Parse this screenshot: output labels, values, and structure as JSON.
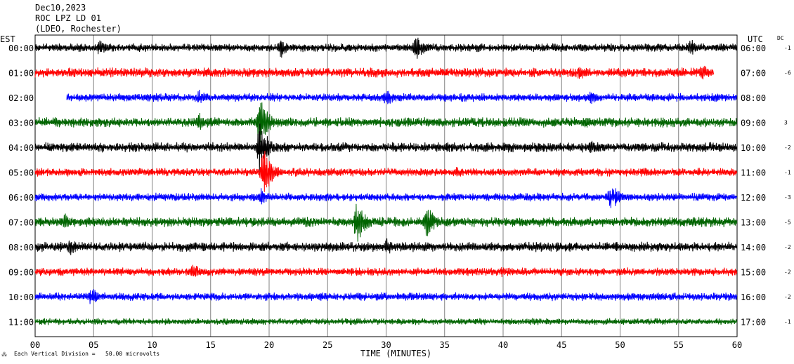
{
  "header": {
    "date": "Dec10,2023",
    "station": "ROC LPZ LD 01",
    "network": "(LDEO, Rochester)"
  },
  "left_zone_label": "EST",
  "right_zone_label": "UTC",
  "dc_label": "DC",
  "footer": {
    "scale_note": "Each Vertical Division =   50.00 microvolts"
  },
  "colors": {
    "trace_cycle": [
      "#000000",
      "#ff0000",
      "#0000ff",
      "#006400"
    ],
    "grid": "#808080",
    "frame": "#000000"
  },
  "chart_data": {
    "type": "line",
    "title": "ROC LPZ LD 01",
    "xlabel": "TIME (MINUTES)",
    "xlim": [
      0,
      60
    ],
    "xticks": [
      "00",
      "05",
      "10",
      "15",
      "20",
      "25",
      "30",
      "35",
      "40",
      "45",
      "50",
      "55",
      "60"
    ],
    "grid": true,
    "rows": [
      {
        "local": "00:00",
        "utc": "06:00",
        "dc": "-1",
        "start": 0.0,
        "end": 60,
        "amp": 5,
        "events": [
          {
            "t": 5.5,
            "a": 14
          },
          {
            "t": 21,
            "a": 16
          },
          {
            "t": 32.5,
            "a": 22
          },
          {
            "t": 56,
            "a": 14
          }
        ]
      },
      {
        "local": "01:00",
        "utc": "07:00",
        "dc": "-6",
        "start": 0.0,
        "end": 58,
        "amp": 6,
        "events": [
          {
            "t": 46.5,
            "a": 13
          },
          {
            "t": 57,
            "a": 14
          }
        ]
      },
      {
        "local": "02:00",
        "utc": "08:00",
        "dc": "",
        "start": 2.7,
        "end": 60,
        "amp": 5,
        "events": [
          {
            "t": 14,
            "a": 12
          },
          {
            "t": 30,
            "a": 14
          },
          {
            "t": 47.5,
            "a": 12
          }
        ]
      },
      {
        "local": "03:00",
        "utc": "09:00",
        "dc": "3",
        "start": 0.0,
        "end": 60,
        "amp": 6,
        "events": [
          {
            "t": 14,
            "a": 15
          },
          {
            "t": 19.2,
            "a": 38
          },
          {
            "t": 47,
            "a": 10
          }
        ]
      },
      {
        "local": "04:00",
        "utc": "10:00",
        "dc": "-2",
        "start": 0.0,
        "end": 60,
        "amp": 6,
        "events": [
          {
            "t": 19.2,
            "a": 40
          },
          {
            "t": 47.5,
            "a": 12
          }
        ]
      },
      {
        "local": "05:00",
        "utc": "11:00",
        "dc": "-1",
        "start": 0.0,
        "end": 60,
        "amp": 5,
        "events": [
          {
            "t": 19.5,
            "a": 38
          },
          {
            "t": 36,
            "a": 10
          }
        ]
      },
      {
        "local": "06:00",
        "utc": "12:00",
        "dc": "-3",
        "start": 0.0,
        "end": 60,
        "amp": 5,
        "events": [
          {
            "t": 19.3,
            "a": 14
          },
          {
            "t": 49.2,
            "a": 22
          }
        ]
      },
      {
        "local": "07:00",
        "utc": "13:00",
        "dc": "-5",
        "start": 0.0,
        "end": 60,
        "amp": 6,
        "events": [
          {
            "t": 27.5,
            "a": 34
          },
          {
            "t": 33.5,
            "a": 26
          },
          {
            "t": 2.5,
            "a": 14
          }
        ]
      },
      {
        "local": "08:00",
        "utc": "14:00",
        "dc": "-2",
        "start": 0.0,
        "end": 60,
        "amp": 6,
        "events": [
          {
            "t": 3,
            "a": 14
          },
          {
            "t": 30,
            "a": 14
          }
        ]
      },
      {
        "local": "09:00",
        "utc": "15:00",
        "dc": "-2",
        "start": 0.0,
        "end": 60,
        "amp": 5,
        "events": [
          {
            "t": 13.5,
            "a": 14
          },
          {
            "t": 39.8,
            "a": 10
          }
        ]
      },
      {
        "local": "10:00",
        "utc": "16:00",
        "dc": "-2",
        "start": 0.0,
        "end": 60,
        "amp": 5,
        "events": [
          {
            "t": 4.8,
            "a": 16
          }
        ]
      },
      {
        "local": "11:00",
        "utc": "17:00",
        "dc": "-1",
        "start": 0.0,
        "end": 60,
        "amp": 4,
        "events": []
      }
    ]
  }
}
